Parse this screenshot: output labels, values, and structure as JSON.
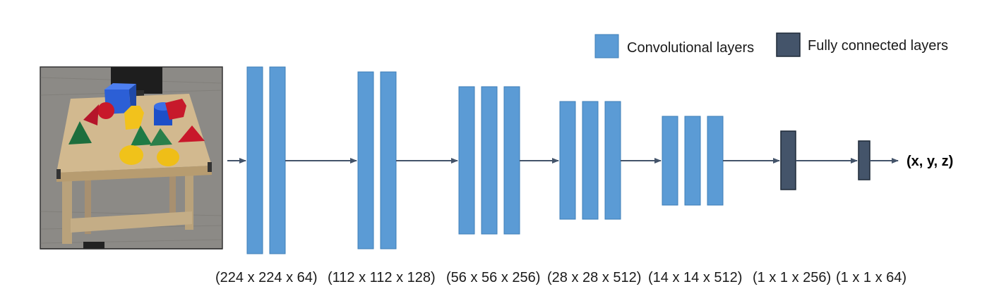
{
  "colors": {
    "conv": "#5b9bd5",
    "conv_stroke": "#3f7fb8",
    "fc": "#44546a",
    "fc_stroke": "#1f2a38",
    "arrow": "#44546a"
  },
  "legend": {
    "conv_label": "Convolutional layers",
    "fc_label": "Fully connected layers"
  },
  "input_image": {
    "description_icon": "table-with-colored-shapes-photo"
  },
  "output_label": "(x, y, z)",
  "stages": [
    {
      "type": "conv",
      "layers": 2,
      "dims": "(224 x 224 x 64)"
    },
    {
      "type": "conv",
      "layers": 2,
      "dims": "(112 x 112 x 128)"
    },
    {
      "type": "conv",
      "layers": 3,
      "dims": "(56 x 56 x 256)"
    },
    {
      "type": "conv",
      "layers": 3,
      "dims": "(28 x 28 x 512)"
    },
    {
      "type": "conv",
      "layers": 3,
      "dims": "(14 x 14 x 512)"
    },
    {
      "type": "fc",
      "layers": 1,
      "dims": "(1 x 1 x 256)"
    },
    {
      "type": "fc",
      "layers": 1,
      "dims": "(1 x 1 x 64)"
    }
  ]
}
